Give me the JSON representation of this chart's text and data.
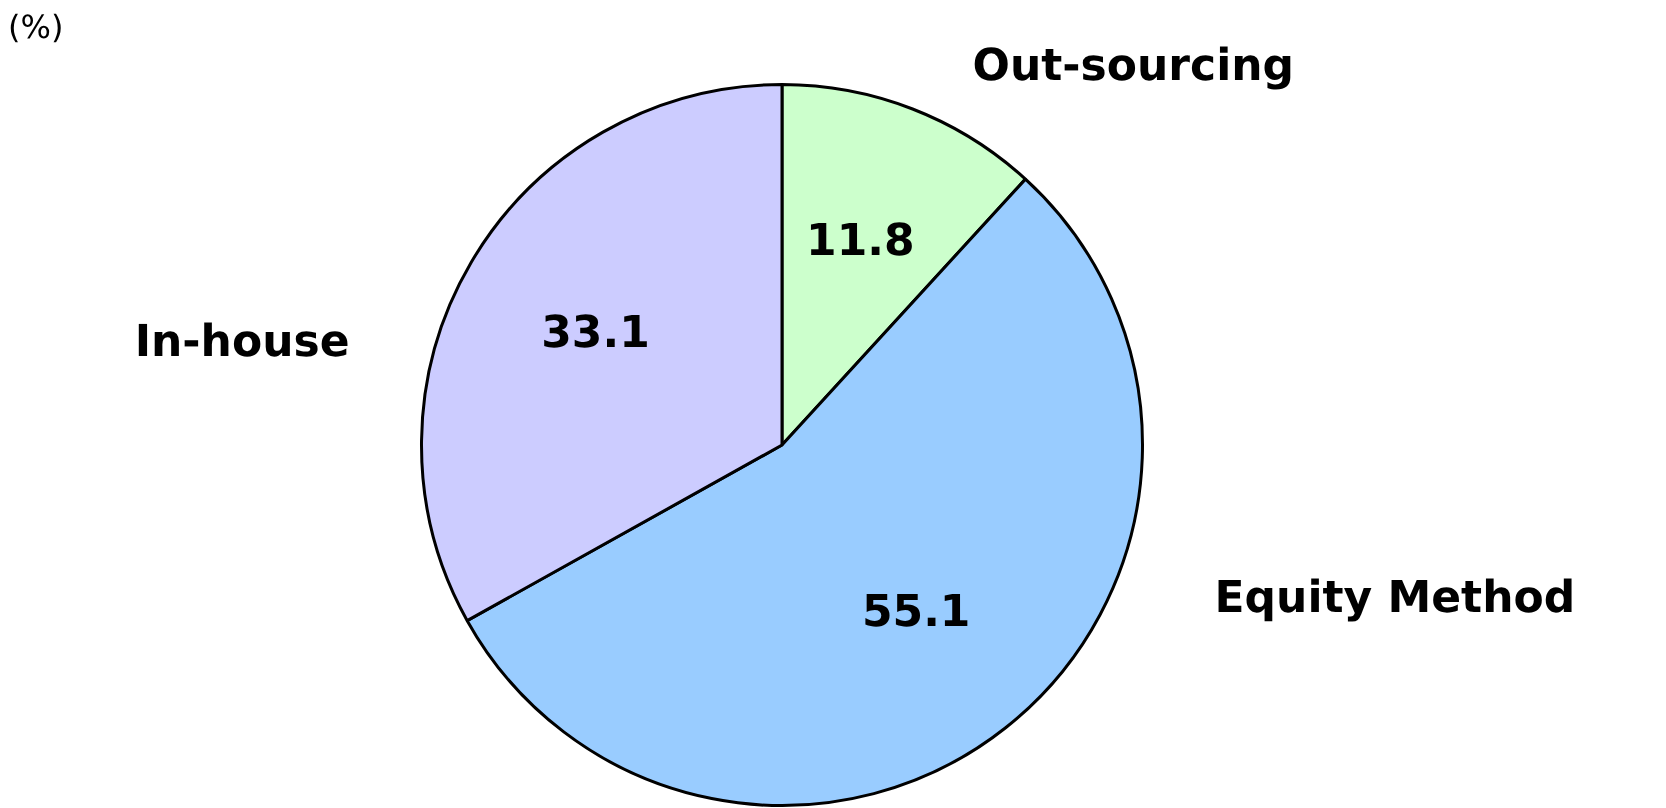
{
  "chart_data": {
    "type": "pie",
    "annotations": [
      "(%)"
    ],
    "categories": [
      "Out-sourcing",
      "Equity Method",
      "In-house"
    ],
    "values": [
      11.8,
      55.1,
      33.1
    ],
    "colors": [
      "#ccffcc",
      "#99ccff",
      "#ccccff"
    ],
    "data_labels": true,
    "legend": false
  }
}
